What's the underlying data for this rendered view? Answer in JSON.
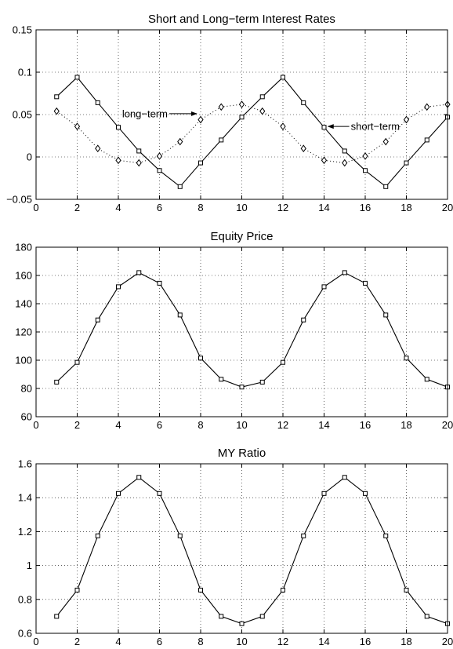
{
  "chart_data": [
    {
      "type": "line",
      "title": "Short and Long−term Interest Rates",
      "xlabel": "",
      "ylabel": "",
      "xlim": [
        0,
        20
      ],
      "ylim": [
        -0.05,
        0.15
      ],
      "xticks": [
        "0",
        "2",
        "4",
        "6",
        "8",
        "10",
        "12",
        "14",
        "16",
        "18",
        "20"
      ],
      "yticks": [
        "−0.05",
        "0",
        "0.05",
        "0.1",
        "0.15"
      ],
      "grid": true,
      "x": [
        1,
        2,
        3,
        4,
        5,
        6,
        7,
        8,
        9,
        10,
        11,
        12,
        13,
        14,
        15,
        16,
        17,
        18,
        19,
        20
      ],
      "series": [
        {
          "name": "short−term",
          "marker": "square",
          "line": "solid",
          "values": [
            0.071,
            0.094,
            0.064,
            0.035,
            0.007,
            -0.016,
            -0.035,
            -0.007,
            0.02,
            0.047,
            0.071,
            0.094,
            0.064,
            0.035,
            0.007,
            -0.016,
            -0.035,
            -0.007,
            0.02,
            0.047
          ]
        },
        {
          "name": "long−term",
          "marker": "diamond",
          "line": "dotted",
          "values": [
            0.054,
            0.036,
            0.01,
            -0.004,
            -0.007,
            0.001,
            0.018,
            0.044,
            0.059,
            0.062,
            0.054,
            0.036,
            0.01,
            -0.004,
            -0.007,
            0.001,
            0.018,
            0.044,
            0.059,
            0.062
          ]
        }
      ],
      "annotations": [
        {
          "text": "long−term",
          "x": 6.4,
          "y": 0.051,
          "arrow_to": [
            7.8,
            0.051
          ],
          "anchor": "end"
        },
        {
          "text": "short−term",
          "x": 15.3,
          "y": 0.036,
          "arrow_to": [
            14.2,
            0.036
          ],
          "anchor": "start"
        }
      ]
    },
    {
      "type": "line",
      "title": "Equity Price",
      "xlabel": "",
      "ylabel": "",
      "xlim": [
        0,
        20
      ],
      "ylim": [
        60,
        180
      ],
      "xticks": [
        "0",
        "2",
        "4",
        "6",
        "8",
        "10",
        "12",
        "14",
        "16",
        "18",
        "20"
      ],
      "yticks": [
        "60",
        "80",
        "100",
        "120",
        "140",
        "160",
        "180"
      ],
      "grid": true,
      "x": [
        1,
        2,
        3,
        4,
        5,
        6,
        7,
        8,
        9,
        10,
        11,
        12,
        13,
        14,
        15,
        16,
        17,
        18,
        19,
        20
      ],
      "series": [
        {
          "name": "",
          "marker": "square",
          "line": "solid",
          "values": [
            84.5,
            98.5,
            128.5,
            152,
            162,
            154.5,
            132,
            101.5,
            86.5,
            81,
            84.5,
            98.5,
            128.5,
            152,
            162,
            154.5,
            132,
            101.5,
            86.5,
            81
          ]
        }
      ]
    },
    {
      "type": "line",
      "title": "MY Ratio",
      "xlabel": "",
      "ylabel": "",
      "xlim": [
        0,
        20
      ],
      "ylim": [
        0.6,
        1.6
      ],
      "xticks": [
        "0",
        "2",
        "4",
        "6",
        "8",
        "10",
        "12",
        "14",
        "16",
        "18",
        "20"
      ],
      "yticks": [
        "0.6",
        "0.8",
        "1",
        "1.2",
        "1.4",
        "1.6"
      ],
      "grid": true,
      "x": [
        1,
        2,
        3,
        4,
        5,
        6,
        7,
        8,
        9,
        10,
        11,
        12,
        13,
        14,
        15,
        16,
        17,
        18,
        19,
        20
      ],
      "series": [
        {
          "name": "",
          "marker": "square",
          "line": "solid",
          "values": [
            0.7,
            0.855,
            1.175,
            1.425,
            1.52,
            1.425,
            1.175,
            0.855,
            0.7,
            0.657,
            0.7,
            0.855,
            1.175,
            1.425,
            1.52,
            1.425,
            1.175,
            0.855,
            0.7,
            0.657
          ]
        }
      ]
    }
  ]
}
